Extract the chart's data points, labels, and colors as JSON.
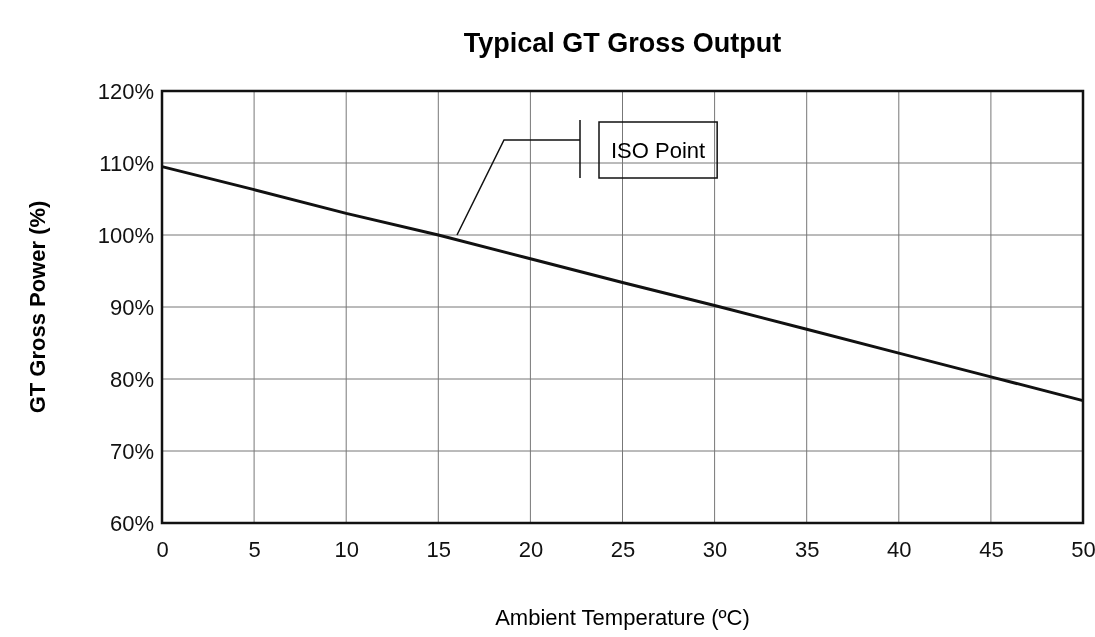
{
  "chart_data": {
    "type": "line",
    "title": "Typical GT Gross Output",
    "xlabel": "Ambient Temperature (ºC)",
    "ylabel": "GT Gross Power (%)",
    "x": [
      0,
      5,
      10,
      15,
      20,
      25,
      30,
      35,
      40,
      45,
      50
    ],
    "series": [
      {
        "color": "#111111",
        "values": [
          109.5,
          106.3,
          103,
          100,
          96.7,
          93.4,
          90.2,
          86.9,
          83.6,
          80.3,
          77
        ]
      }
    ],
    "xlim": [
      0,
      50
    ],
    "xticks": [
      0,
      5,
      10,
      15,
      20,
      25,
      30,
      35,
      40,
      45,
      50
    ],
    "ylim": [
      60,
      120
    ],
    "yticks": [
      {
        "value": 60,
        "label": "60%"
      },
      {
        "value": 70,
        "label": "70%"
      },
      {
        "value": 80,
        "label": "80%"
      },
      {
        "value": 90,
        "label": "90%"
      },
      {
        "value": 100,
        "label": "100%"
      },
      {
        "value": 110,
        "label": "110%"
      },
      {
        "value": 120,
        "label": "120%"
      }
    ],
    "grid": true,
    "marker": "none",
    "line_style": "solid",
    "annotations": [
      "ISO Point"
    ]
  }
}
